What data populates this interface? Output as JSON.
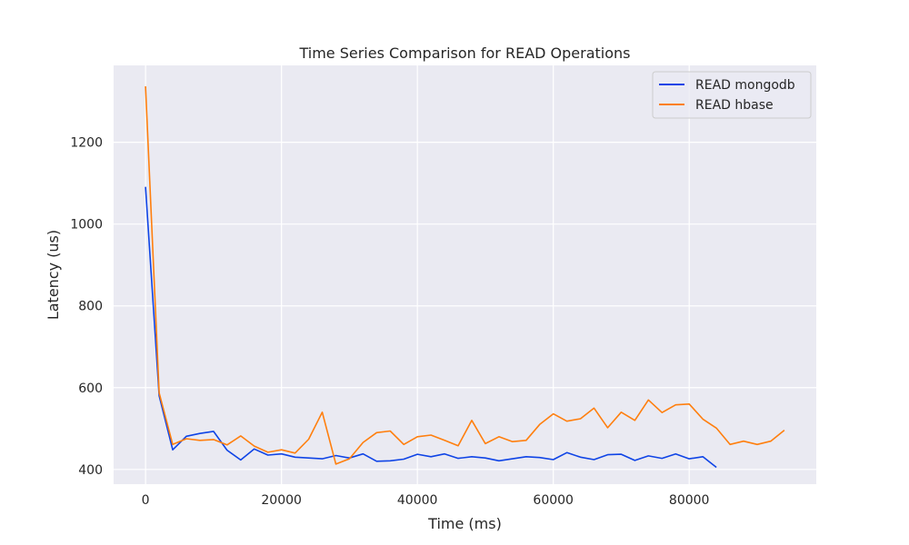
{
  "chart_data": {
    "type": "line",
    "title": "Time Series Comparison for READ Operations",
    "xlabel": "Time (ms)",
    "ylabel": "Latency (us)",
    "xlim": [
      -4700,
      98700
    ],
    "ylim": [
      364,
      1388
    ],
    "xticks": [
      0,
      20000,
      40000,
      60000,
      80000
    ],
    "yticks": [
      400,
      600,
      800,
      1000,
      1200
    ],
    "grid": true,
    "legend_position": "top-right",
    "background_color": "#eaeaf2",
    "grid_color": "#ffffff",
    "series": [
      {
        "name": "READ mongodb",
        "color": "#0f44e6",
        "x": [
          0,
          2000,
          4000,
          6000,
          8000,
          10000,
          12000,
          14000,
          16000,
          18000,
          20000,
          22000,
          24000,
          26000,
          28000,
          30000,
          32000,
          34000,
          36000,
          38000,
          40000,
          42000,
          44000,
          46000,
          48000,
          50000,
          52000,
          54000,
          56000,
          58000,
          60000,
          62000,
          64000,
          66000,
          68000,
          70000,
          72000,
          74000,
          76000,
          78000,
          80000,
          82000,
          84000
        ],
        "y": [
          1091,
          580,
          448,
          481,
          488,
          493,
          447,
          423,
          450,
          435,
          438,
          430,
          428,
          426,
          434,
          428,
          438,
          420,
          421,
          425,
          437,
          431,
          438,
          427,
          431,
          428,
          421,
          426,
          431,
          429,
          424,
          441,
          430,
          424,
          436,
          437,
          422,
          433,
          427,
          438,
          426,
          431,
          405
        ]
      },
      {
        "name": "READ hbase",
        "color": "#ff7f0e",
        "x": [
          0,
          2000,
          4000,
          6000,
          8000,
          10000,
          12000,
          14000,
          16000,
          18000,
          20000,
          22000,
          24000,
          26000,
          28000,
          30000,
          32000,
          34000,
          36000,
          38000,
          40000,
          42000,
          44000,
          46000,
          48000,
          50000,
          52000,
          54000,
          56000,
          58000,
          60000,
          62000,
          64000,
          66000,
          68000,
          70000,
          72000,
          74000,
          76000,
          78000,
          80000,
          82000,
          84000,
          86000,
          88000,
          90000,
          92000,
          94000
        ],
        "y": [
          1337,
          587,
          461,
          475,
          471,
          473,
          460,
          482,
          457,
          442,
          448,
          440,
          474,
          540,
          413,
          426,
          466,
          490,
          494,
          461,
          480,
          484,
          471,
          458,
          520,
          463,
          480,
          468,
          471,
          510,
          536,
          518,
          524,
          550,
          502,
          540,
          520,
          570,
          539,
          558,
          560,
          523,
          501,
          461,
          469,
          461,
          469,
          496
        ]
      }
    ]
  }
}
